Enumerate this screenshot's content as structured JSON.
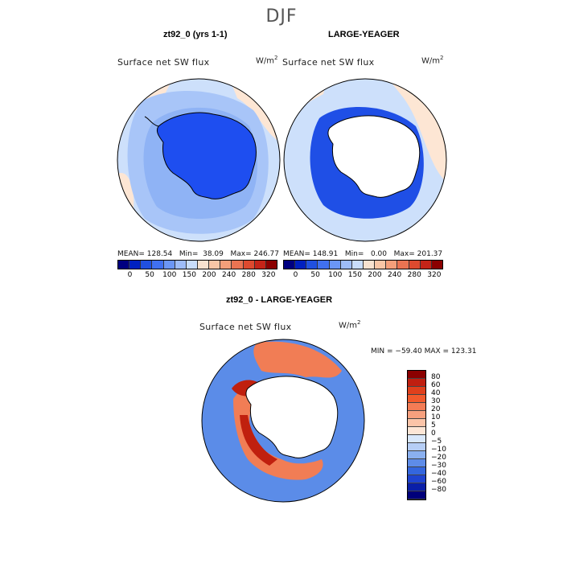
{
  "figure": {
    "title": "DJF"
  },
  "chart_data": [
    {
      "type": "heatmap",
      "title": "zt92_0 (yrs 1-1)",
      "subtitle": "Surface net SW flux",
      "units": "W/m",
      "units_exp": "2",
      "projection": "south polar stereographic",
      "stats": {
        "mean_label": "MEAN=",
        "mean": "128.54",
        "min_label": "Min=",
        "min": "38.09",
        "max_label": "Max=",
        "max": "246.77"
      },
      "colorbar": {
        "orientation": "horizontal",
        "ticks": [
          "0",
          "50",
          "100",
          "150",
          "200",
          "240",
          "280",
          "320"
        ],
        "colors": [
          "#000080",
          "#0020c0",
          "#2050e0",
          "#4070f0",
          "#6b96f5",
          "#9ebcf8",
          "#c9ddfb",
          "#f8e2cf",
          "#f8c6a6",
          "#f49f7a",
          "#ea7352",
          "#dd4a2f",
          "#c42418",
          "#8b0000"
        ]
      },
      "field_colors": {
        "continent": "#1e4ef0",
        "ocean_main": "#cde0fb",
        "ocean_warm": "#fde6d4",
        "ocean_low": "#8fb3f5",
        "ocean_mid": "#a8c5f8"
      }
    },
    {
      "type": "heatmap",
      "title": "LARGE-YEAGER",
      "subtitle": "Surface net SW flux",
      "units": "W/m",
      "units_exp": "2",
      "projection": "south polar stereographic",
      "stats": {
        "mean_label": "MEAN=",
        "mean": "148.91",
        "min_label": "Min=",
        "min": "0.00",
        "max_label": "Max=",
        "max": "201.37"
      },
      "colorbar": {
        "orientation": "horizontal",
        "ticks": [
          "0",
          "50",
          "100",
          "150",
          "200",
          "240",
          "280",
          "320"
        ],
        "colors": [
          "#000080",
          "#0020c0",
          "#2050e0",
          "#4070f0",
          "#6b96f5",
          "#9ebcf8",
          "#c9ddfb",
          "#f8e2cf",
          "#f8c6a6",
          "#f49f7a",
          "#ea7352",
          "#dd4a2f",
          "#c42418",
          "#8b0000"
        ]
      },
      "field_colors": {
        "continent": "#ffffff",
        "ocean_main": "#cde0fb",
        "ocean_warm": "#fde6d4",
        "coast_band": "#1f4fe6"
      }
    },
    {
      "type": "heatmap",
      "title": "zt92_0 - LARGE-YEAGER",
      "subtitle": "Surface net SW flux",
      "units": "W/m",
      "units_exp": "2",
      "projection": "south polar stereographic",
      "stats": {
        "text": "MIN = −59.40 MAX = 123.31",
        "min": -59.4,
        "max": 123.31
      },
      "colorbar": {
        "orientation": "vertical",
        "ticks": [
          "80",
          "60",
          "40",
          "30",
          "20",
          "10",
          "5",
          "0",
          "−5",
          "−10",
          "−20",
          "−30",
          "−40",
          "−60",
          "−80"
        ],
        "colors": [
          "#8b0000",
          "#c01f10",
          "#e0401c",
          "#f25a2c",
          "#f47c55",
          "#f7a07e",
          "#fbc4a8",
          "#fde6d6",
          "#d9e8fb",
          "#b6cef6",
          "#8ab0f0",
          "#5e8ce8",
          "#3466de",
          "#1f43d0",
          "#0a1fa8",
          "#00007a"
        ]
      },
      "field_colors": {
        "continent": "#ffffff",
        "ocean_main": "#5b8ce8",
        "warm_band": "#f17d55",
        "hot_core": "#c0200e"
      }
    }
  ]
}
